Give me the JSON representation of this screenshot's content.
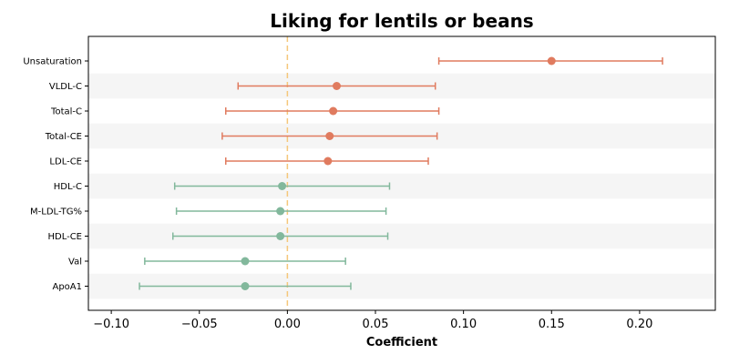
{
  "chart_data": {
    "type": "forest",
    "title": "Liking for lentils or beans",
    "xlabel": "Coefficient",
    "ylabel": "",
    "xlim": [
      -0.113,
      0.243
    ],
    "xticks": [
      -0.1,
      -0.05,
      0.0,
      0.05,
      0.1,
      0.15,
      0.2
    ],
    "xtick_labels": [
      "−0.10",
      "−0.05",
      "0.00",
      "0.05",
      "0.10",
      "0.15",
      "0.20"
    ],
    "reference_line": 0,
    "colors": {
      "positive": "#e07b5f",
      "negative": "#82b89c",
      "reference_line": "#f5c77a",
      "band": "#f5f5f5"
    },
    "rows": [
      {
        "label": "Unsaturation",
        "estimate": 0.15,
        "lower": 0.086,
        "upper": 0.213,
        "group": "positive"
      },
      {
        "label": "VLDL-C",
        "estimate": 0.028,
        "lower": -0.028,
        "upper": 0.084,
        "group": "positive"
      },
      {
        "label": "Total-C",
        "estimate": 0.026,
        "lower": -0.035,
        "upper": 0.086,
        "group": "positive"
      },
      {
        "label": "Total-CE",
        "estimate": 0.024,
        "lower": -0.037,
        "upper": 0.085,
        "group": "positive"
      },
      {
        "label": "LDL-CE",
        "estimate": 0.023,
        "lower": -0.035,
        "upper": 0.08,
        "group": "positive"
      },
      {
        "label": "HDL-C",
        "estimate": -0.003,
        "lower": -0.064,
        "upper": 0.058,
        "group": "negative"
      },
      {
        "label": "M-LDL-TG%",
        "estimate": -0.004,
        "lower": -0.063,
        "upper": 0.056,
        "group": "negative"
      },
      {
        "label": "HDL-CE",
        "estimate": -0.004,
        "lower": -0.065,
        "upper": 0.057,
        "group": "negative"
      },
      {
        "label": "Val",
        "estimate": -0.024,
        "lower": -0.081,
        "upper": 0.033,
        "group": "negative"
      },
      {
        "label": "ApoA1",
        "estimate": -0.024,
        "lower": -0.084,
        "upper": 0.036,
        "group": "negative"
      }
    ]
  }
}
